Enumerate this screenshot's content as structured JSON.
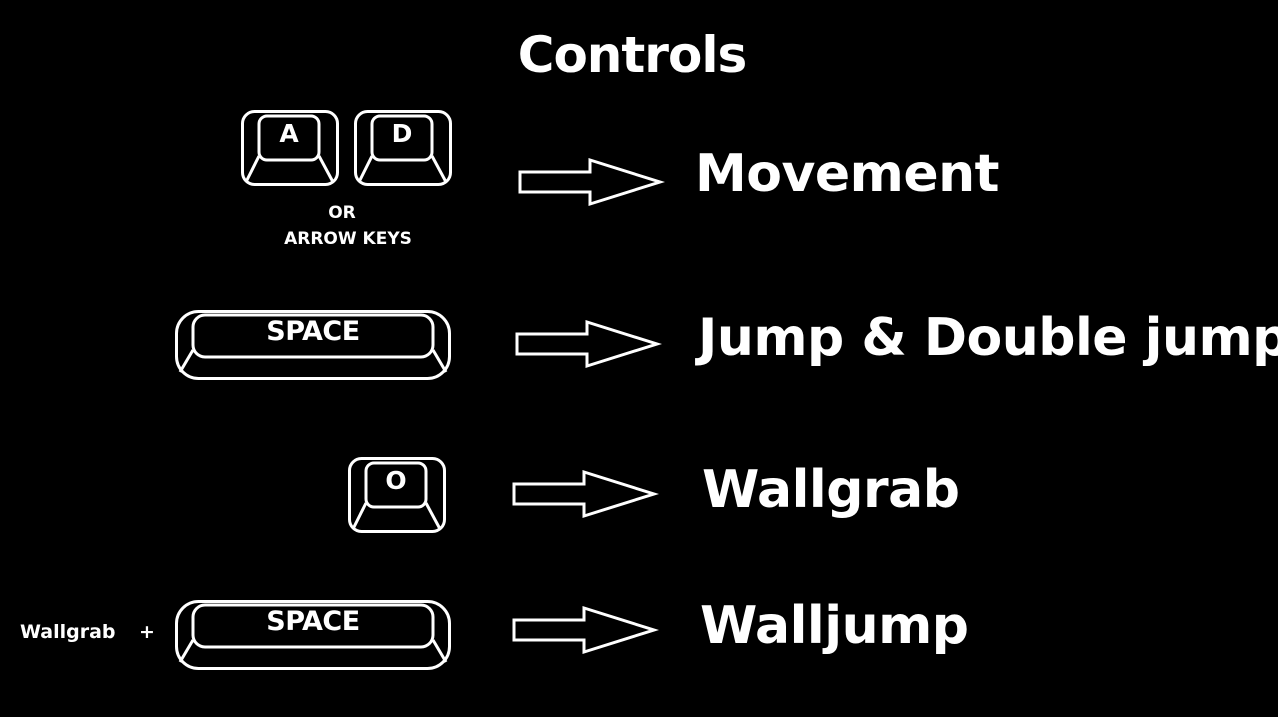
{
  "screen": {
    "title": "Controls",
    "background_color": "#000000",
    "foreground_color": "#ffffff"
  },
  "bindings": [
    {
      "keys": [
        "A",
        "D"
      ],
      "alternative_prefix": "OR",
      "alternative": "ARROW KEYS",
      "arrow_icon": "arrow-right-icon",
      "action": "Movement"
    },
    {
      "key": "SPACE",
      "arrow_icon": "arrow-right-icon",
      "action": "Jump & Double jump"
    },
    {
      "key": "O",
      "arrow_icon": "arrow-right-icon",
      "action": "Wallgrab"
    },
    {
      "modifier": "Wallgrab",
      "modifier_join": "+",
      "key": "SPACE",
      "arrow_icon": "arrow-right-icon",
      "action": "Walljump"
    }
  ]
}
